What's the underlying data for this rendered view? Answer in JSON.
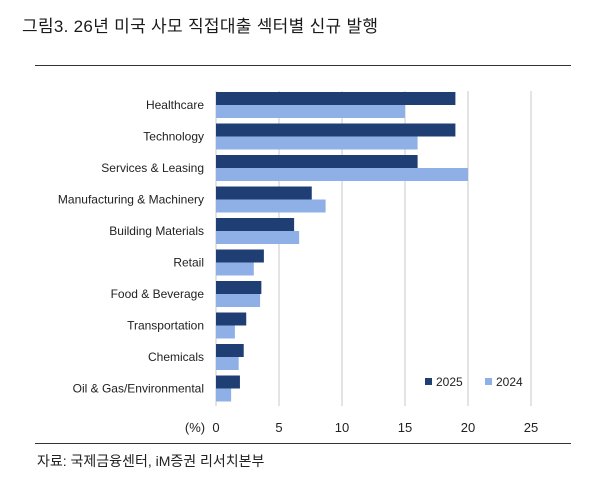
{
  "figure_title": "그림3.   26년 미국 사모 직접대출 섹터별 신규 발행",
  "source_note": "자료: 국제금융센터, iM증권 리서치본부",
  "colors": {
    "series_2025": "#1f3e74",
    "series_2024": "#8fb0e6",
    "grid": "#c8c8c8",
    "rule": "#333333"
  },
  "chart_data": {
    "type": "bar",
    "orientation": "horizontal",
    "unit_label": "(%)",
    "categories": [
      "Healthcare",
      "Technology",
      "Services & Leasing",
      "Manufacturing & Machinery",
      "Building Materials",
      "Retail",
      "Food & Beverage",
      "Transportation",
      "Chemicals",
      "Oil & Gas/Environmental"
    ],
    "series": [
      {
        "name": "2025",
        "values": [
          19.0,
          19.0,
          16.0,
          7.6,
          6.2,
          3.8,
          3.6,
          2.4,
          2.2,
          1.9
        ]
      },
      {
        "name": "2024",
        "values": [
          15.0,
          16.0,
          20.0,
          8.7,
          6.6,
          3.0,
          3.5,
          1.5,
          1.8,
          1.2
        ]
      }
    ],
    "xlim": [
      0,
      25
    ],
    "xticks": [
      0,
      5,
      10,
      15,
      20,
      25
    ],
    "xtick_labels": [
      "0",
      "5",
      "10",
      "15",
      "20",
      "25"
    ],
    "grid": "vertical",
    "legend": "bottom-right"
  }
}
